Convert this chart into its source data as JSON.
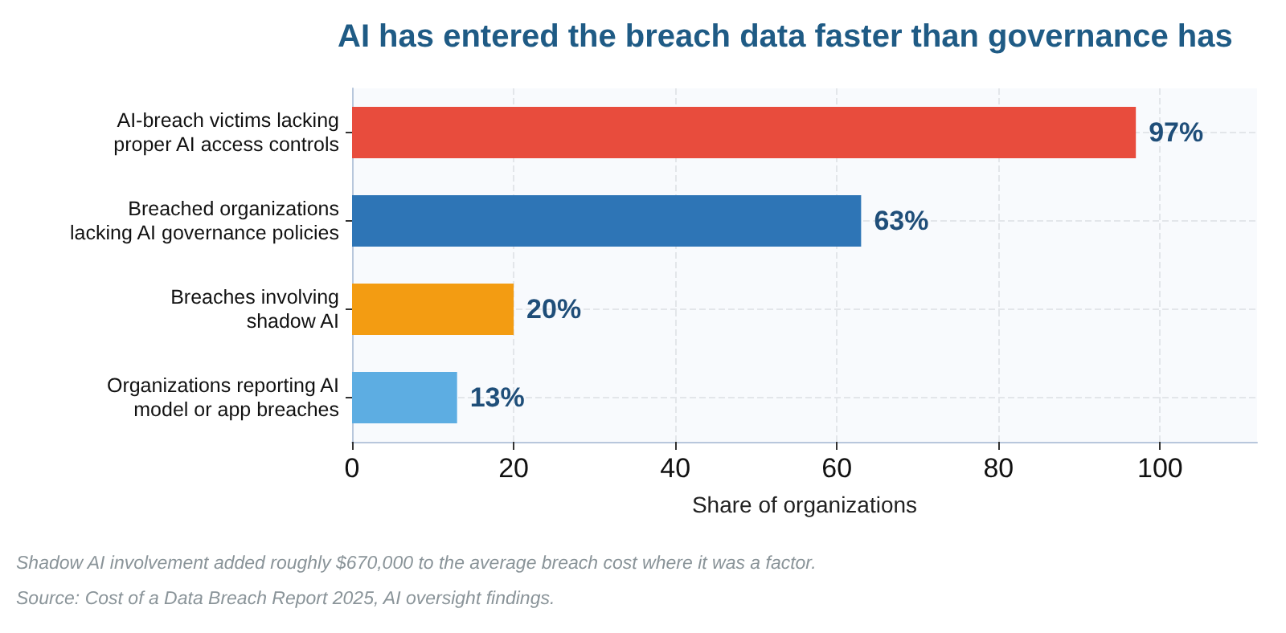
{
  "chart_data": {
    "type": "bar",
    "orientation": "horizontal",
    "title": "AI has entered the breach data faster than governance has",
    "categories": [
      "AI-breach victims lacking\nproper AI access controls",
      "Breached organizations\nlacking AI governance policies",
      "Breaches involving\nshadow AI",
      "Organizations reporting AI\nmodel or app breaches"
    ],
    "values": [
      97,
      63,
      20,
      13
    ],
    "colors": [
      "#e84c3d",
      "#2e75b6",
      "#f39c12",
      "#5dade2"
    ],
    "value_labels": [
      "97%",
      "63%",
      "20%",
      "13%"
    ],
    "xlabel": "Share of organizations",
    "xlim": [
      0,
      112
    ],
    "xticks": [
      0,
      20,
      40,
      60,
      80,
      100
    ],
    "grid": true,
    "annotations": [
      "Shadow AI involvement added roughly $670,000 to the average breach cost where it was a factor.",
      "Source: Cost of a Data Breach Report 2025, AI oversight findings."
    ]
  }
}
